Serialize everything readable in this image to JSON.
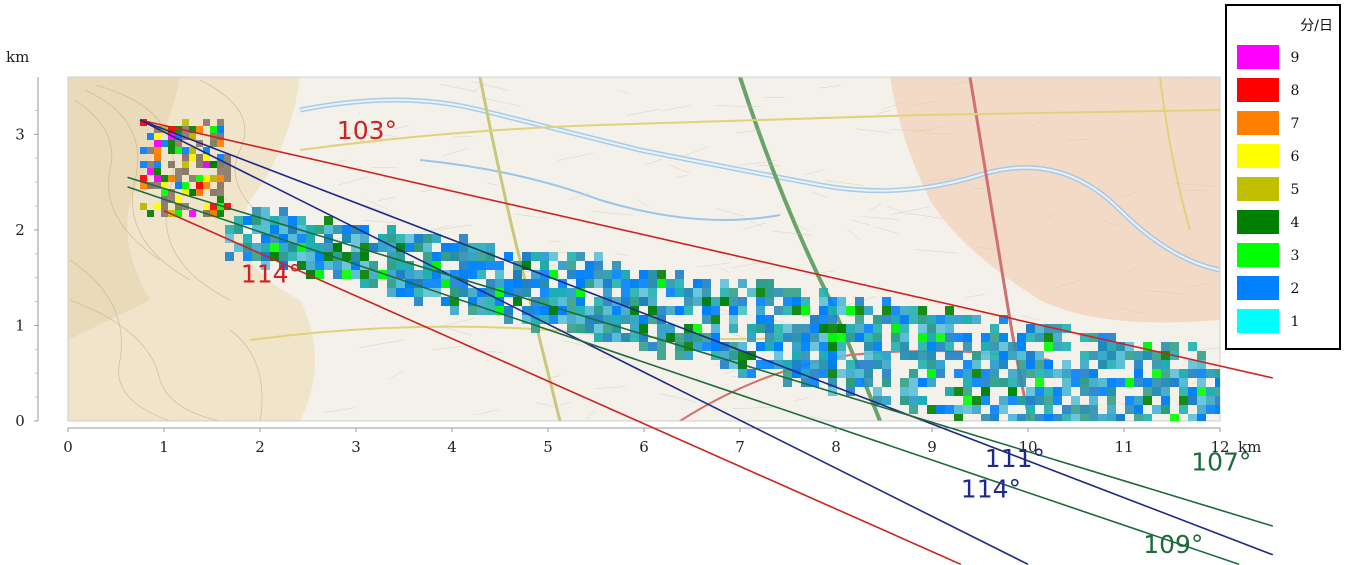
{
  "chart_data": {
    "type": "heatmap",
    "title": "",
    "x_unit": "km",
    "y_unit": "km",
    "xlim": [
      0,
      12
    ],
    "ylim": [
      0,
      3.6
    ],
    "x_ticks": [
      "0",
      "1",
      "2",
      "3",
      "4",
      "5",
      "6",
      "7",
      "8",
      "9",
      "10",
      "11",
      "12"
    ],
    "y_ticks": [
      "0",
      "1",
      "2",
      "3"
    ],
    "legend": {
      "title": "分/日",
      "placement": "top-right",
      "entries": [
        {
          "label": "9",
          "color": "#ff00ff"
        },
        {
          "label": "8",
          "color": "#ff0000"
        },
        {
          "label": "7",
          "color": "#ff8000"
        },
        {
          "label": "6",
          "color": "#ffff00"
        },
        {
          "label": "5",
          "color": "#c0c000"
        },
        {
          "label": "4",
          "color": "#008000"
        },
        {
          "label": "3",
          "color": "#00ff00"
        },
        {
          "label": "2",
          "color": "#0080ff"
        },
        {
          "label": "1",
          "color": "#00ffff"
        }
      ]
    },
    "source_point": [
      0.75,
      3.15
    ],
    "angle_lines": [
      {
        "label": "103°",
        "color": "#cc2222",
        "from": [
          0.75,
          3.15
        ],
        "to": [
          12.55,
          0.45
        ],
        "label_at": [
          2.8,
          2.95
        ]
      },
      {
        "label": "114°",
        "color": "#cc2222",
        "from": [
          1.0,
          2.2
        ],
        "to": [
          9.3,
          -1.5
        ],
        "label_at": [
          1.8,
          1.45
        ]
      },
      {
        "label": "111°",
        "color": "#1e2a8a",
        "from": [
          0.75,
          3.15
        ],
        "to": [
          12.55,
          -1.4
        ],
        "label_at": [
          9.55,
          -0.48
        ]
      },
      {
        "label": "114°",
        "color": "#1e2a8a",
        "from": [
          0.75,
          3.15
        ],
        "to": [
          10.0,
          -1.5
        ],
        "label_at": [
          9.3,
          -0.8
        ]
      },
      {
        "label": "107°",
        "color": "#1e6a3a",
        "from": [
          0.62,
          2.55
        ],
        "to": [
          12.55,
          -1.1
        ],
        "label_at": [
          11.7,
          -0.52
        ]
      },
      {
        "label": "109°",
        "color": "#1e6a3a",
        "from": [
          0.62,
          2.45
        ],
        "to": [
          12.2,
          -1.5
        ],
        "label_at": [
          11.2,
          -1.38
        ]
      }
    ],
    "heat_band": {
      "start": [
        1.8,
        2.0
      ],
      "end": [
        12.0,
        0.1
      ],
      "dominant_values": [
        1,
        2,
        3,
        4
      ],
      "source_area_values": [
        9,
        8,
        7,
        6,
        5,
        4,
        3,
        2
      ]
    }
  }
}
